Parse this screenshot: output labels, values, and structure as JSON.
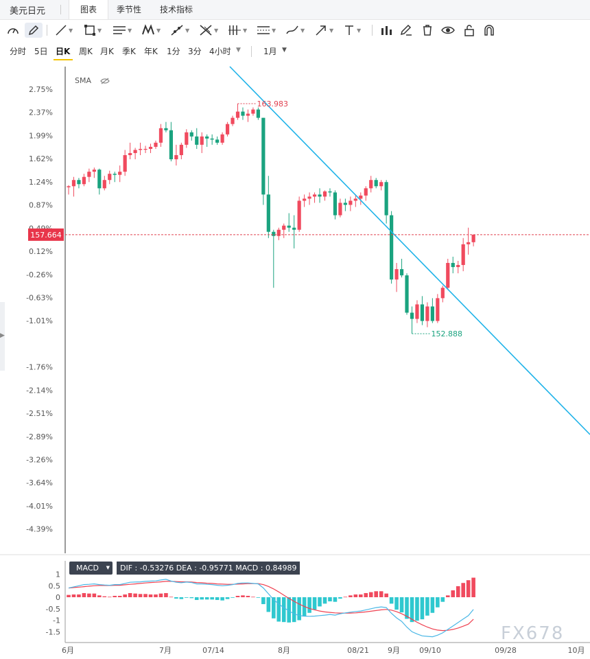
{
  "header": {
    "pair_title": "美元日元",
    "tabs": [
      "图表",
      "季节性",
      "技术指标"
    ]
  },
  "toolbar_icons": [
    "gauge-icon",
    "pencil-icon",
    "line-icon",
    "rectangle-icon",
    "fib-lines-icon",
    "pattern-icon",
    "trendline-icon",
    "crossline-icon",
    "vertical-lines-icon",
    "channel-icon",
    "brush-icon",
    "arrow-icon",
    "text-icon",
    "bar-chart-icon",
    "edit-icon",
    "trash-icon",
    "eye-icon",
    "lock-icon",
    "magnet-icon"
  ],
  "periods": [
    "分时",
    "5日",
    "日K",
    "周K",
    "月K",
    "季K",
    "年K",
    "1分",
    "3分",
    "4小时"
  ],
  "active_period": "日K",
  "range_select": "1月",
  "indicator": {
    "sma_label": "SMA"
  },
  "price_axis_labels": [
    "2.75%",
    "2.37%",
    "1.99%",
    "1.62%",
    "1.24%",
    "0.87%",
    "0.49%",
    "0.12%",
    "-0.26%",
    "-0.63%",
    "-1.01%",
    "-1.76%",
    "-2.14%",
    "-2.51%",
    "-2.89%",
    "-3.26%",
    "-3.64%",
    "-4.01%",
    "-4.39%"
  ],
  "current_price_label": "157.664",
  "high_label": "163.983",
  "low_label": "152.888",
  "macd": {
    "badge": "MACD",
    "values": "DIF : -0.53276  DEA : -0.95771  MACD : 0.84989",
    "y_ticks": [
      "1",
      "0.5",
      "0",
      "-0.5",
      "-1",
      "-1.5"
    ]
  },
  "date_axis_labels": [
    "6月",
    "7月",
    "07/14",
    "8月",
    "08/21",
    "9月",
    "09/10",
    "09/28",
    "10月"
  ],
  "watermark": "FX678",
  "colors": {
    "up": "#f04a5e",
    "down": "#1aa37f",
    "trend": "#1fb3e9",
    "dif": "#4ab7e6",
    "dea": "#ef4050",
    "macd_neg": "#2fc8cf",
    "macd_pos": "#f04a5e"
  },
  "chart_data": {
    "type": "candlestick",
    "title": "",
    "y_unit": "JPY",
    "y_range": [
      152.0,
      165.0
    ],
    "high": 163.983,
    "low": 152.888,
    "last": 157.664,
    "candles": [
      [
        159.95,
        160.05,
        159.6,
        160.0
      ],
      [
        160.0,
        160.45,
        159.5,
        160.3
      ],
      [
        160.3,
        160.4,
        159.9,
        160.1
      ],
      [
        160.1,
        160.6,
        160.0,
        160.45
      ],
      [
        160.45,
        160.85,
        160.2,
        160.7
      ],
      [
        160.7,
        160.9,
        160.4,
        160.8
      ],
      [
        160.8,
        160.85,
        159.6,
        159.9
      ],
      [
        159.9,
        160.5,
        159.8,
        160.3
      ],
      [
        160.3,
        160.75,
        160.1,
        160.6
      ],
      [
        160.6,
        160.7,
        160.2,
        160.55
      ],
      [
        160.55,
        161.0,
        160.2,
        160.7
      ],
      [
        160.7,
        161.75,
        160.5,
        161.5
      ],
      [
        161.5,
        162.1,
        161.3,
        161.6
      ],
      [
        161.6,
        161.85,
        161.3,
        161.75
      ],
      [
        161.75,
        162.1,
        161.5,
        161.8
      ],
      [
        161.8,
        161.95,
        161.6,
        161.8
      ],
      [
        161.8,
        162.05,
        161.6,
        161.9
      ],
      [
        161.9,
        162.2,
        161.8,
        162.1
      ],
      [
        162.1,
        163.0,
        161.9,
        162.8
      ],
      [
        162.8,
        163.1,
        162.6,
        162.7
      ],
      [
        162.7,
        163.1,
        161.2,
        161.3
      ],
      [
        161.3,
        162.0,
        161.0,
        161.5
      ],
      [
        161.5,
        162.1,
        161.3,
        162.0
      ],
      [
        162.0,
        162.75,
        161.85,
        162.6
      ],
      [
        162.6,
        162.7,
        162.2,
        162.4
      ],
      [
        162.4,
        162.8,
        161.8,
        162.0
      ],
      [
        162.0,
        162.6,
        161.6,
        162.4
      ],
      [
        162.4,
        162.5,
        161.9,
        162.3
      ],
      [
        162.3,
        162.5,
        162.0,
        162.25
      ],
      [
        162.25,
        162.4,
        162.0,
        162.1
      ],
      [
        162.1,
        162.6,
        162.0,
        162.5
      ],
      [
        162.5,
        163.1,
        162.4,
        163.0
      ],
      [
        163.0,
        163.4,
        162.9,
        163.3
      ],
      [
        163.3,
        163.983,
        163.2,
        163.6
      ],
      [
        163.6,
        163.8,
        163.2,
        163.4
      ],
      [
        163.4,
        163.7,
        163.1,
        163.5
      ],
      [
        163.5,
        163.8,
        163.4,
        163.7
      ],
      [
        163.7,
        163.8,
        163.2,
        163.3
      ],
      [
        163.3,
        163.3,
        159.1,
        159.6
      ],
      [
        159.6,
        160.5,
        157.5,
        157.8
      ],
      [
        157.8,
        157.9,
        155.1,
        157.6
      ],
      [
        157.6,
        158.0,
        157.4,
        157.9
      ],
      [
        157.9,
        158.2,
        157.5,
        158.1
      ],
      [
        158.1,
        158.7,
        157.8,
        158.0
      ],
      [
        158.0,
        158.6,
        157.0,
        157.9
      ],
      [
        157.9,
        159.5,
        157.8,
        159.3
      ],
      [
        159.3,
        159.6,
        159.0,
        159.4
      ],
      [
        159.4,
        159.7,
        159.1,
        159.5
      ],
      [
        159.5,
        159.7,
        159.2,
        159.6
      ],
      [
        159.6,
        159.9,
        159.2,
        159.5
      ],
      [
        159.5,
        159.8,
        159.3,
        159.75
      ],
      [
        159.75,
        159.9,
        159.5,
        159.7
      ],
      [
        159.7,
        159.8,
        158.4,
        158.6
      ],
      [
        158.6,
        159.4,
        158.5,
        159.2
      ],
      [
        159.2,
        159.4,
        158.8,
        159.1
      ],
      [
        159.1,
        159.5,
        158.8,
        159.3
      ],
      [
        159.3,
        159.6,
        159.0,
        159.4
      ],
      [
        159.4,
        159.7,
        159.1,
        159.55
      ],
      [
        159.55,
        160.0,
        159.3,
        159.9
      ],
      [
        159.9,
        160.5,
        159.7,
        160.3
      ],
      [
        160.3,
        160.4,
        159.9,
        160.0
      ],
      [
        160.0,
        160.3,
        159.8,
        160.2
      ],
      [
        160.2,
        160.3,
        158.2,
        158.6
      ],
      [
        158.6,
        158.8,
        155.3,
        155.5
      ],
      [
        155.5,
        156.3,
        154.9,
        156.0
      ],
      [
        156.0,
        156.5,
        155.6,
        155.7
      ],
      [
        155.7,
        155.8,
        153.8,
        153.9
      ],
      [
        153.9,
        154.2,
        152.888,
        153.6
      ],
      [
        153.6,
        154.5,
        153.4,
        154.3
      ],
      [
        154.3,
        154.7,
        153.3,
        153.5
      ],
      [
        153.5,
        154.4,
        153.2,
        154.2
      ],
      [
        154.2,
        154.6,
        153.4,
        153.5
      ],
      [
        153.5,
        154.8,
        153.4,
        154.6
      ],
      [
        154.6,
        155.2,
        154.4,
        155.1
      ],
      [
        155.1,
        156.5,
        155.0,
        156.3
      ],
      [
        156.3,
        156.6,
        155.8,
        156.1
      ],
      [
        156.1,
        156.4,
        155.8,
        156.2
      ],
      [
        156.2,
        157.5,
        155.9,
        157.2
      ],
      [
        157.2,
        158.0,
        156.7,
        157.3
      ],
      [
        157.3,
        157.6,
        157.1,
        157.664
      ]
    ],
    "macd_series": {
      "dif": [
        0.4,
        0.45,
        0.5,
        0.55,
        0.56,
        0.58,
        0.55,
        0.53,
        0.52,
        0.55,
        0.55,
        0.6,
        0.65,
        0.66,
        0.67,
        0.69,
        0.7,
        0.71,
        0.75,
        0.78,
        0.7,
        0.65,
        0.63,
        0.66,
        0.64,
        0.58,
        0.58,
        0.56,
        0.55,
        0.52,
        0.5,
        0.52,
        0.55,
        0.6,
        0.62,
        0.62,
        0.6,
        0.58,
        0.4,
        0.15,
        -0.1,
        -0.3,
        -0.45,
        -0.6,
        -0.72,
        -0.8,
        -0.82,
        -0.83,
        -0.82,
        -0.8,
        -0.78,
        -0.75,
        -0.78,
        -0.72,
        -0.68,
        -0.65,
        -0.62,
        -0.6,
        -0.55,
        -0.5,
        -0.45,
        -0.42,
        -0.45,
        -0.7,
        -0.9,
        -1.05,
        -1.3,
        -1.5,
        -1.6,
        -1.68,
        -1.7,
        -1.72,
        -1.65,
        -1.55,
        -1.4,
        -1.25,
        -1.1,
        -0.95,
        -0.8,
        -0.53276
      ],
      "dea": [
        0.4,
        0.42,
        0.44,
        0.46,
        0.48,
        0.5,
        0.51,
        0.51,
        0.51,
        0.52,
        0.52,
        0.54,
        0.56,
        0.58,
        0.6,
        0.62,
        0.64,
        0.65,
        0.67,
        0.69,
        0.69,
        0.68,
        0.67,
        0.67,
        0.66,
        0.64,
        0.63,
        0.61,
        0.6,
        0.58,
        0.57,
        0.56,
        0.56,
        0.57,
        0.58,
        0.59,
        0.59,
        0.59,
        0.55,
        0.47,
        0.36,
        0.23,
        0.09,
        -0.05,
        -0.18,
        -0.3,
        -0.4,
        -0.49,
        -0.55,
        -0.6,
        -0.64,
        -0.66,
        -0.68,
        -0.69,
        -0.69,
        -0.69,
        -0.68,
        -0.66,
        -0.64,
        -0.61,
        -0.58,
        -0.55,
        -0.53,
        -0.56,
        -0.63,
        -0.72,
        -0.83,
        -0.96,
        -1.09,
        -1.2,
        -1.3,
        -1.38,
        -1.43,
        -1.45,
        -1.44,
        -1.4,
        -1.34,
        -1.26,
        -1.17,
        -0.95771
      ],
      "hist": [
        0.1,
        0.12,
        0.12,
        0.18,
        0.16,
        0.16,
        0.08,
        0.04,
        0.02,
        0.06,
        0.06,
        0.12,
        0.18,
        0.16,
        0.14,
        0.14,
        0.12,
        0.12,
        0.16,
        0.18,
        0.02,
        -0.06,
        -0.08,
        -0.02,
        -0.04,
        -0.12,
        -0.1,
        -0.1,
        -0.1,
        -0.12,
        -0.14,
        -0.08,
        -0.02,
        0.06,
        0.08,
        0.06,
        0.02,
        -0.02,
        -0.3,
        -0.64,
        -0.92,
        -1.06,
        -1.08,
        -1.1,
        -1.08,
        -1.0,
        -0.84,
        -0.68,
        -0.54,
        -0.4,
        -0.28,
        -0.18,
        -0.2,
        -0.06,
        0.02,
        0.08,
        0.12,
        0.12,
        0.18,
        0.22,
        0.26,
        0.26,
        0.16,
        -0.28,
        -0.54,
        -0.66,
        -0.94,
        -1.08,
        -1.02,
        -0.96,
        -0.8,
        -0.68,
        -0.44,
        -0.2,
        0.08,
        0.3,
        0.48,
        0.62,
        0.74,
        0.84989
      ]
    }
  }
}
